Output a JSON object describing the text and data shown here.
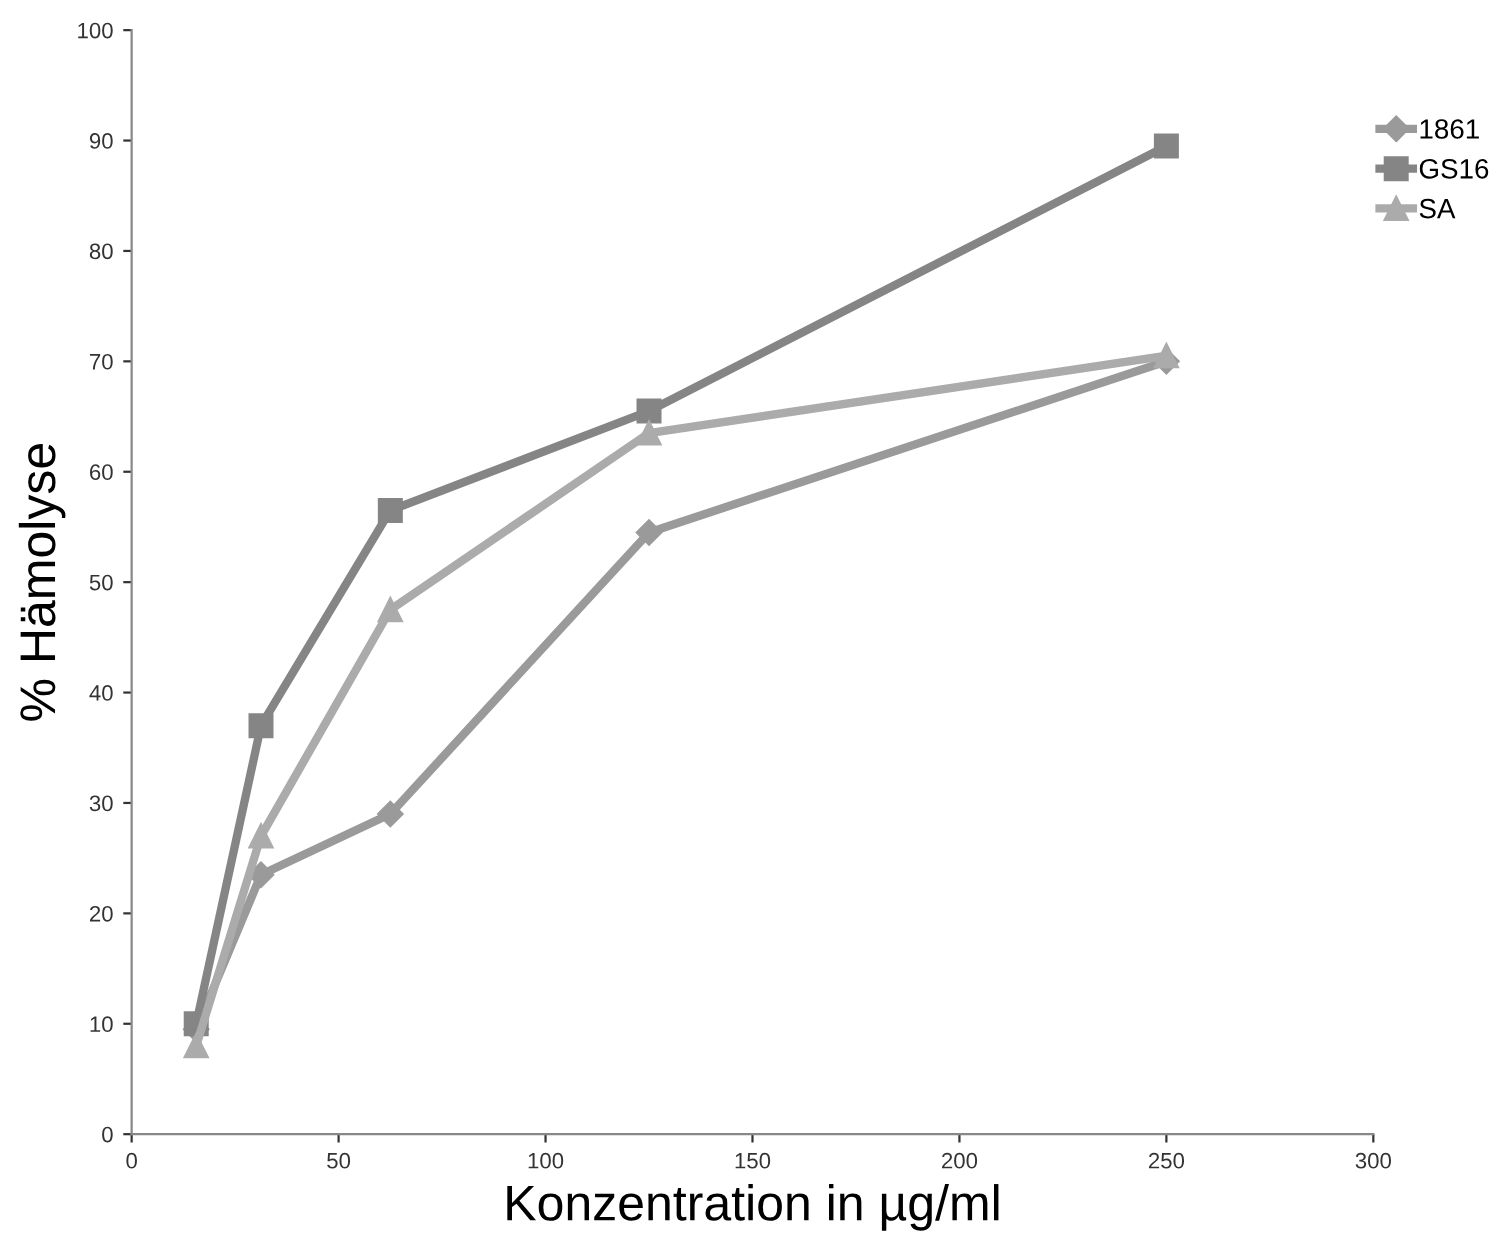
{
  "chart_data": {
    "type": "line",
    "xlabel": "Konzentration in µg/ml",
    "ylabel": "% Hämolyse",
    "xlim": [
      0,
      300
    ],
    "xticks": [
      0,
      50,
      100,
      150,
      200,
      250,
      300
    ],
    "ylim": [
      0,
      100
    ],
    "yticks": [
      0,
      10,
      20,
      30,
      40,
      50,
      60,
      70,
      80,
      90,
      100
    ],
    "grid": false,
    "legend": "top right",
    "series": [
      {
        "name": "1861",
        "color": "#9a9a9a",
        "marker": "diamond",
        "x": [
          15.6,
          31.25,
          62.5,
          125,
          250
        ],
        "values": [
          9.5,
          23.5,
          29,
          54.5,
          70
        ]
      },
      {
        "name": "GS16",
        "color": "#858585",
        "marker": "square",
        "x": [
          15.6,
          31.25,
          62.5,
          125,
          250
        ],
        "values": [
          10,
          37,
          56.5,
          65.5,
          89.5
        ]
      },
      {
        "name": "SA",
        "color": "#ababab",
        "marker": "triangle",
        "x": [
          15.6,
          31.25,
          62.5,
          125,
          250
        ],
        "values": [
          8,
          27,
          47.5,
          63.5,
          70.5
        ]
      }
    ]
  }
}
